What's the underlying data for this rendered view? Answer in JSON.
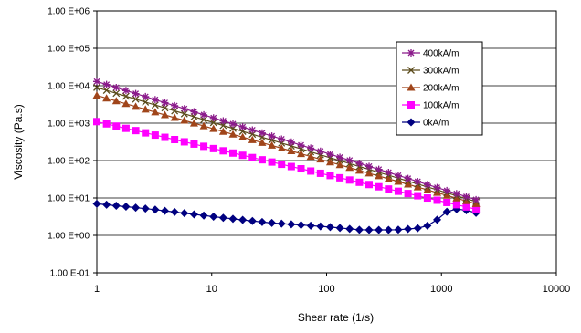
{
  "chart_data": {
    "type": "line",
    "title": "",
    "xlabel": "Shear rate (1/s)",
    "ylabel": "Viscosity (Pa.s)",
    "x_scale": "log",
    "y_scale": "log",
    "xlim": [
      1,
      10000
    ],
    "ylim": [
      0.1,
      1000000
    ],
    "x_ticks": [
      {
        "value": 1,
        "label": "1"
      },
      {
        "value": 10,
        "label": "10"
      },
      {
        "value": 100,
        "label": "100"
      },
      {
        "value": 1000,
        "label": "1000"
      },
      {
        "value": 10000,
        "label": "10000"
      }
    ],
    "y_ticks": [
      {
        "value": 0.1,
        "label": "1.00 E-01"
      },
      {
        "value": 1,
        "label": "1.00 E+00"
      },
      {
        "value": 10,
        "label": "1.00 E+01"
      },
      {
        "value": 100,
        "label": "1.00 E+02"
      },
      {
        "value": 1000,
        "label": "1.00 E+03"
      },
      {
        "value": 10000,
        "label": "1.00 E+04"
      },
      {
        "value": 100000,
        "label": "1.00 E+05"
      },
      {
        "value": 1000000,
        "label": "1.00 E+06"
      }
    ],
    "grid": "horizontal",
    "legend_position": "top-right",
    "series": [
      {
        "name": "400kA/m",
        "color": "#8B1A8B",
        "marker": "star",
        "start": [
          1,
          13000
        ],
        "end": [
          2000,
          9
        ]
      },
      {
        "name": "300kA/m",
        "color": "#5A4A1A",
        "marker": "x",
        "start": [
          1,
          9000
        ],
        "end": [
          2000,
          8
        ]
      },
      {
        "name": "200kA/m",
        "color": "#A0451A",
        "marker": "triangle",
        "start": [
          1,
          5500
        ],
        "end": [
          2000,
          7
        ]
      },
      {
        "name": "100kA/m",
        "color": "#FF00FF",
        "marker": "square",
        "start": [
          1,
          1100
        ],
        "end": [
          2000,
          5
        ]
      },
      {
        "name": "0kA/m",
        "color": "#000080",
        "marker": "diamond",
        "points": [
          [
            1,
            7
          ],
          [
            3,
            5
          ],
          [
            10,
            3.2
          ],
          [
            30,
            2.2
          ],
          [
            100,
            1.7
          ],
          [
            200,
            1.4
          ],
          [
            400,
            1.4
          ],
          [
            700,
            1.6
          ],
          [
            850,
            2.2
          ],
          [
            1000,
            3.2
          ],
          [
            1200,
            5.2
          ],
          [
            1600,
            4.8
          ],
          [
            2000,
            4
          ]
        ]
      }
    ]
  }
}
